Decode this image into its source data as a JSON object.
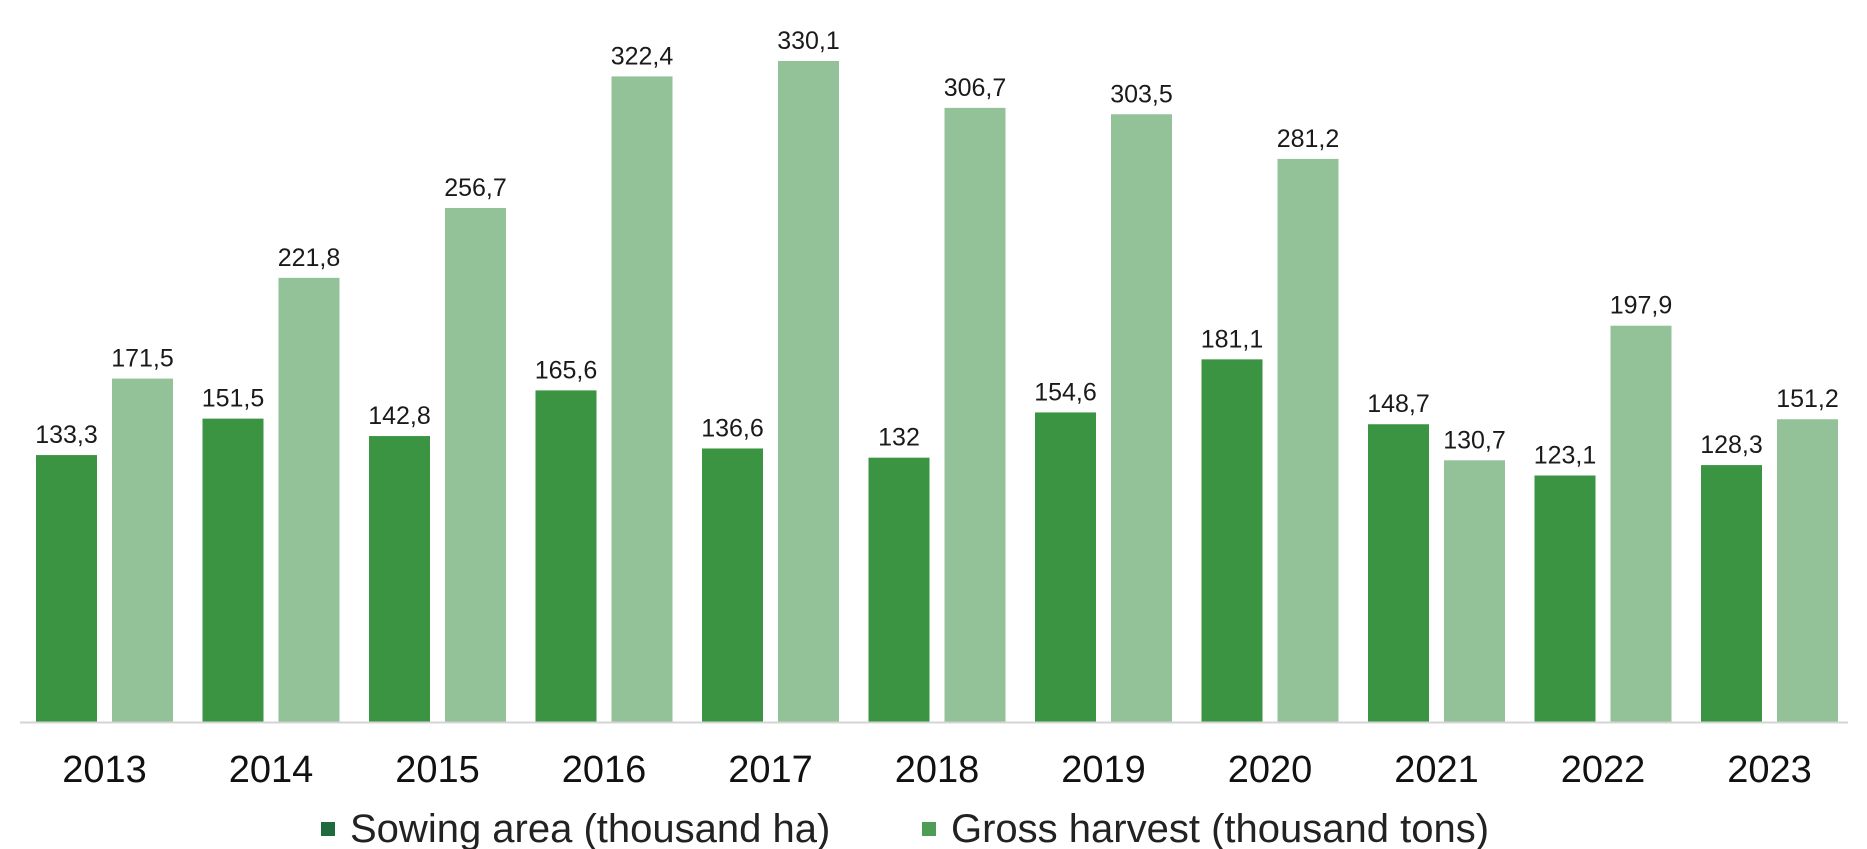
{
  "chart_data": {
    "type": "bar",
    "categories": [
      "2013",
      "2014",
      "2015",
      "2016",
      "2017",
      "2018",
      "2019",
      "2020",
      "2021",
      "2022",
      "2023"
    ],
    "series": [
      {
        "name": "Sowing area (thousand ha)",
        "values": [
          133.3,
          151.5,
          142.8,
          165.6,
          136.6,
          132,
          154.6,
          181.1,
          148.7,
          123.1,
          128.3
        ],
        "labels": [
          "133,3",
          "151,5",
          "142,8",
          "165,6",
          "136,6",
          "132",
          "154,6",
          "181,1",
          "148,7",
          "123,1",
          "128,3"
        ],
        "color": "#3a9441",
        "legend_color": "#1f6b3e"
      },
      {
        "name": "Gross harvest (thousand tons)",
        "values": [
          171.5,
          221.8,
          256.7,
          322.4,
          330.1,
          306.7,
          303.5,
          281.2,
          130.7,
          197.9,
          151.2
        ],
        "labels": [
          "171,5",
          "221,8",
          "256,7",
          "322,4",
          "330,1",
          "306,7",
          "303,5",
          "281,2",
          "130,7",
          "197,9",
          "151,2"
        ],
        "color": "#93c198",
        "legend_color": "#4e9d57"
      }
    ],
    "ylim": [
      0,
      330.1
    ],
    "grid": false,
    "legend_position": "bottom",
    "axis_color": "#d4d4d4"
  }
}
